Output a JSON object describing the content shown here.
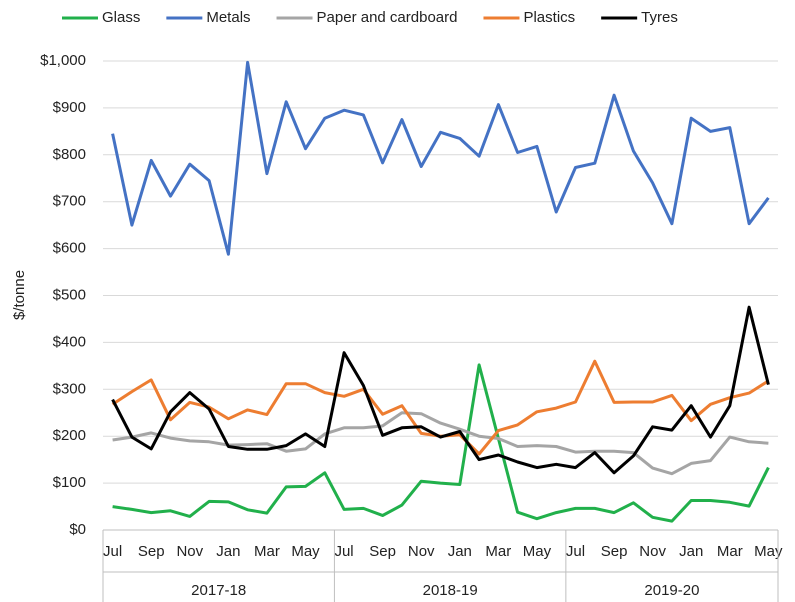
{
  "chart_data": {
    "type": "line",
    "y_label": "$/tonne",
    "categories": [
      "Jul",
      null,
      "Sep",
      null,
      "Nov",
      null,
      "Jan",
      null,
      "Mar",
      null,
      "May",
      null,
      "Jul",
      null,
      "Sep",
      null,
      "Nov",
      null,
      "Jan",
      null,
      "Mar",
      null,
      "May",
      null,
      "Jul",
      null,
      "Sep",
      null,
      "Nov",
      null,
      "Jan",
      null,
      "Mar",
      null,
      "May"
    ],
    "groups": [
      "2017-18",
      "2018-19",
      "2019-20"
    ],
    "series": [
      {
        "name": "Glass",
        "color": "#21b04b",
        "values": [
          50,
          44,
          37,
          41,
          29,
          61,
          60,
          43,
          36,
          92,
          93,
          122,
          44,
          46,
          31,
          53,
          104,
          100,
          97,
          352,
          195,
          38,
          24,
          37,
          46,
          46,
          37,
          58,
          27,
          19,
          63,
          63,
          59,
          51,
          133
        ]
      },
      {
        "name": "Metals",
        "color": "#4472c4",
        "values": [
          845,
          650,
          788,
          712,
          780,
          745,
          588,
          997,
          760,
          913,
          813,
          878,
          895,
          885,
          783,
          875,
          775,
          848,
          835,
          797,
          907,
          805,
          818,
          678,
          773,
          782,
          927,
          808,
          740,
          653,
          878,
          850,
          858,
          653,
          708
        ]
      },
      {
        "name": "Paper and cardboard",
        "color": "#a5a5a5",
        "values": [
          192,
          198,
          207,
          196,
          190,
          188,
          181,
          182,
          184,
          168,
          173,
          205,
          218,
          218,
          222,
          250,
          248,
          228,
          215,
          200,
          195,
          178,
          180,
          178,
          166,
          168,
          168,
          165,
          132,
          120,
          142,
          148,
          198,
          188,
          185
        ]
      },
      {
        "name": "Plastics",
        "color": "#ed7d31",
        "values": [
          268,
          295,
          320,
          235,
          272,
          262,
          237,
          256,
          246,
          312,
          312,
          293,
          285,
          300,
          247,
          265,
          206,
          200,
          203,
          162,
          212,
          224,
          252,
          260,
          273,
          360,
          272,
          273,
          273,
          287,
          233,
          268,
          282,
          292,
          318
        ]
      },
      {
        "name": "Tyres",
        "color": "#000000",
        "values": [
          278,
          198,
          173,
          252,
          293,
          258,
          178,
          172,
          172,
          180,
          205,
          178,
          378,
          308,
          202,
          218,
          220,
          198,
          210,
          150,
          160,
          145,
          133,
          140,
          133,
          165,
          122,
          158,
          220,
          213,
          265,
          198,
          265,
          475,
          310
        ]
      }
    ],
    "ylim": [
      0,
      1000
    ],
    "yticks": [
      {
        "value": 0,
        "label": "$0"
      },
      {
        "value": 100,
        "label": "$100"
      },
      {
        "value": 200,
        "label": "$200"
      },
      {
        "value": 300,
        "label": "$300"
      },
      {
        "value": 400,
        "label": "$400"
      },
      {
        "value": 500,
        "label": "$500"
      },
      {
        "value": 600,
        "label": "$600"
      },
      {
        "value": 700,
        "label": "$700"
      },
      {
        "value": 800,
        "label": "$800"
      },
      {
        "value": 900,
        "label": "$900"
      },
      {
        "value": 1000,
        "label": "$1,000"
      }
    ],
    "grid": true,
    "legend": "top"
  }
}
